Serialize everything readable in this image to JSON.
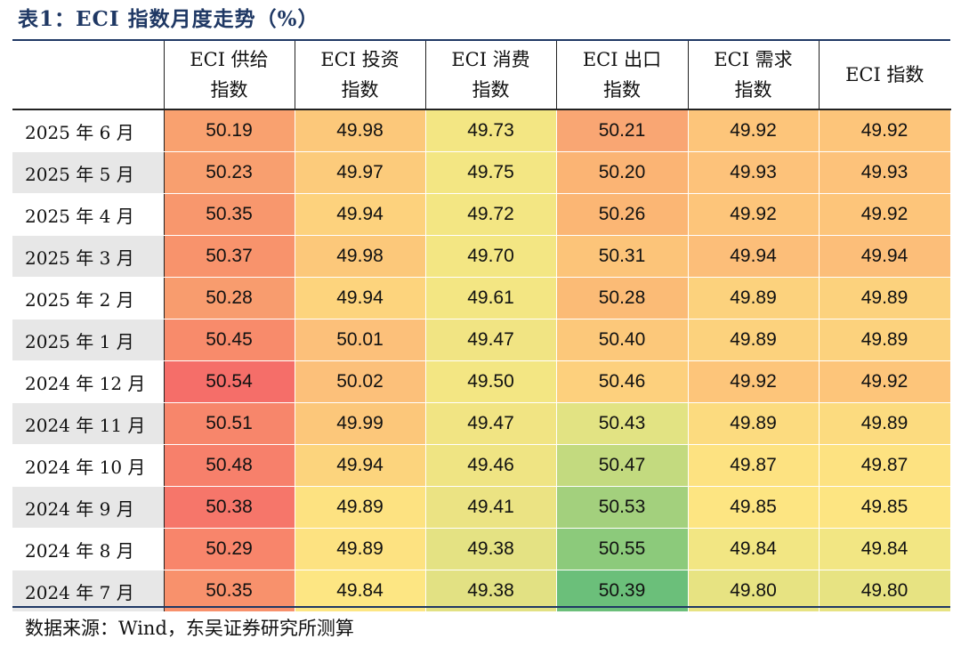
{
  "title": "表1：ECI 指数月度走势（%）",
  "columns": [
    {
      "line1": "",
      "line2": ""
    },
    {
      "line1": "ECI 供给",
      "line2": "指数"
    },
    {
      "line1": "ECI 投资",
      "line2": "指数"
    },
    {
      "line1": "ECI 消费",
      "line2": "指数"
    },
    {
      "line1": "ECI 出口",
      "line2": "指数"
    },
    {
      "line1": "ECI 需求",
      "line2": "指数"
    },
    {
      "line1": "ECI 指数",
      "line2": ""
    }
  ],
  "rows": [
    {
      "label": "2025 年 6 月",
      "values": [
        "50.19",
        "49.98",
        "49.73",
        "50.21",
        "49.92",
        "49.92"
      ],
      "colors": [
        "#f9a16f",
        "#fcc87a",
        "#f3e683",
        "#f9a673",
        "#fdc57a",
        "#fdc57a"
      ]
    },
    {
      "label": "2025 年 5 月",
      "values": [
        "50.23",
        "49.97",
        "49.75",
        "50.20",
        "49.93",
        "49.93"
      ],
      "colors": [
        "#f89f6f",
        "#fccb7b",
        "#f3e683",
        "#fbb474",
        "#fdc27a",
        "#fdc27a"
      ]
    },
    {
      "label": "2025 年 4 月",
      "values": [
        "50.35",
        "49.94",
        "49.72",
        "50.26",
        "49.92",
        "49.92"
      ],
      "colors": [
        "#f8976d",
        "#fdd27d",
        "#f3e683",
        "#fbb674",
        "#fdc57a",
        "#fdc57a"
      ]
    },
    {
      "label": "2025 年 3 月",
      "values": [
        "50.37",
        "49.98",
        "49.70",
        "50.31",
        "49.94",
        "49.94"
      ],
      "colors": [
        "#f8936c",
        "#fcc87a",
        "#f3e683",
        "#fcc479",
        "#fcbe79",
        "#fcbe79"
      ]
    },
    {
      "label": "2025 年 2 月",
      "values": [
        "50.28",
        "49.94",
        "49.61",
        "50.28",
        "49.89",
        "49.89"
      ],
      "colors": [
        "#f89c6e",
        "#fdd47d",
        "#f3e683",
        "#fbbb76",
        "#fcd27d",
        "#fcd27d"
      ]
    },
    {
      "label": "2025 年 1 月",
      "values": [
        "50.45",
        "50.01",
        "49.47",
        "50.40",
        "49.89",
        "49.89"
      ],
      "colors": [
        "#f88b6b",
        "#fcc07a",
        "#f1e483",
        "#fcc87a",
        "#fcd27d",
        "#fcd27d"
      ]
    },
    {
      "label": "2024 年 12 月",
      "values": [
        "50.54",
        "50.02",
        "49.50",
        "50.46",
        "49.92",
        "49.92"
      ],
      "colors": [
        "#f56e69",
        "#fcc07a",
        "#f3e683",
        "#fdd07d",
        "#fdc57a",
        "#fdc57a"
      ]
    },
    {
      "label": "2024 年 11 月",
      "values": [
        "50.51",
        "49.99",
        "49.47",
        "50.43",
        "49.89",
        "49.89"
      ],
      "colors": [
        "#f7866b",
        "#fcc77a",
        "#f1e483",
        "#e2e383",
        "#fcdb7f",
        "#fcdb7f"
      ]
    },
    {
      "label": "2024 年 10 月",
      "values": [
        "50.48",
        "49.94",
        "49.46",
        "50.47",
        "49.87",
        "49.87"
      ],
      "colors": [
        "#f7806b",
        "#fcd47d",
        "#efe483",
        "#c3da7f",
        "#fde281",
        "#fde281"
      ]
    },
    {
      "label": "2024 年 9 月",
      "values": [
        "50.38",
        "49.89",
        "49.41",
        "50.53",
        "49.85",
        "49.85"
      ],
      "colors": [
        "#f6766a",
        "#fde281",
        "#ebe383",
        "#a3d07d",
        "#fde582",
        "#fde582"
      ]
    },
    {
      "label": "2024 年 8 月",
      "values": [
        "50.29",
        "49.89",
        "49.38",
        "50.55",
        "49.84",
        "49.84"
      ],
      "colors": [
        "#f8856b",
        "#fde281",
        "#e4e283",
        "#8cca7b",
        "#f2e683",
        "#f2e683"
      ]
    },
    {
      "label": "2024 年 7 月",
      "values": [
        "50.35",
        "49.84",
        "49.38",
        "50.39",
        "49.80",
        "49.80"
      ],
      "colors": [
        "#f8916c",
        "#fde683",
        "#e2e183",
        "#6bbf7a",
        "#e7e382",
        "#e7e382"
      ]
    }
  ],
  "source": "数据来源：Wind，东吴证券研究所测算"
}
